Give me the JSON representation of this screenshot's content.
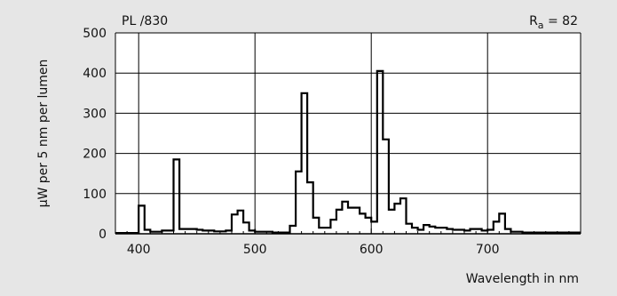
{
  "chart_data": {
    "type": "line",
    "title": "PL /830",
    "annotation": {
      "prefix": "R",
      "subscript": "a",
      "suffix": " = 82"
    },
    "xlabel": "Wavelength in nm",
    "ylabel": "µW per 5 nm per lumen",
    "xlim": [
      380,
      780
    ],
    "ylim": [
      0,
      500
    ],
    "x_ticks": [
      400,
      500,
      600,
      700
    ],
    "y_ticks": [
      0,
      100,
      200,
      300,
      400,
      500
    ],
    "grid": true,
    "series": [
      {
        "style": "step",
        "x": [
          380,
          400,
          405,
          410,
          415,
          420,
          425,
          430,
          435,
          440,
          445,
          450,
          455,
          460,
          465,
          470,
          475,
          480,
          485,
          490,
          495,
          500,
          505,
          510,
          515,
          520,
          525,
          530,
          535,
          540,
          545,
          550,
          555,
          560,
          565,
          570,
          575,
          580,
          585,
          590,
          595,
          600,
          605,
          610,
          615,
          620,
          625,
          630,
          635,
          640,
          645,
          650,
          655,
          660,
          665,
          670,
          675,
          680,
          685,
          690,
          695,
          700,
          705,
          710,
          715,
          720,
          725,
          730,
          735,
          740,
          745,
          750,
          755,
          760,
          765,
          770,
          775
        ],
        "values": [
          2,
          70,
          10,
          5,
          5,
          8,
          8,
          185,
          12,
          12,
          12,
          10,
          8,
          8,
          6,
          6,
          8,
          48,
          58,
          28,
          8,
          5,
          5,
          5,
          3,
          3,
          3,
          20,
          155,
          350,
          128,
          40,
          15,
          15,
          35,
          60,
          80,
          65,
          65,
          50,
          40,
          30,
          405,
          235,
          60,
          75,
          88,
          25,
          15,
          10,
          22,
          18,
          15,
          15,
          12,
          10,
          10,
          8,
          12,
          12,
          8,
          10,
          30,
          50,
          12,
          5,
          5,
          3,
          3,
          3,
          3,
          3,
          3,
          3,
          3,
          3,
          3
        ]
      }
    ]
  }
}
